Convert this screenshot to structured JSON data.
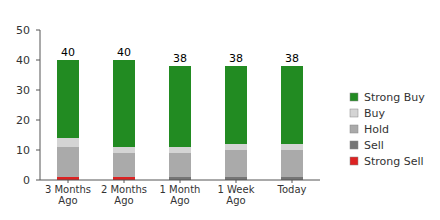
{
  "chart_data": {
    "type": "bar",
    "stacked": true,
    "categories": [
      "3 Months Ago",
      "2 Months Ago",
      "1 Month Ago",
      "1 Week Ago",
      "Today"
    ],
    "series": [
      {
        "name": "Strong Sell",
        "color": "#dd2222",
        "values": [
          1,
          1,
          0,
          0,
          0
        ]
      },
      {
        "name": "Sell",
        "color": "#757575",
        "values": [
          0,
          0,
          1,
          1,
          1
        ]
      },
      {
        "name": "Hold",
        "color": "#aaaaaa",
        "values": [
          10,
          8,
          8,
          9,
          9
        ]
      },
      {
        "name": "Buy",
        "color": "#d4d4d4",
        "values": [
          3,
          2,
          2,
          2,
          2
        ]
      },
      {
        "name": "Strong Buy",
        "color": "#228b22",
        "values": [
          26,
          29,
          27,
          26,
          26
        ]
      }
    ],
    "totals": [
      40,
      40,
      38,
      38,
      38
    ],
    "ylim": [
      0,
      50
    ],
    "yticks": [
      0,
      10,
      20,
      30,
      40,
      50
    ],
    "grid": false,
    "legend": "right"
  }
}
